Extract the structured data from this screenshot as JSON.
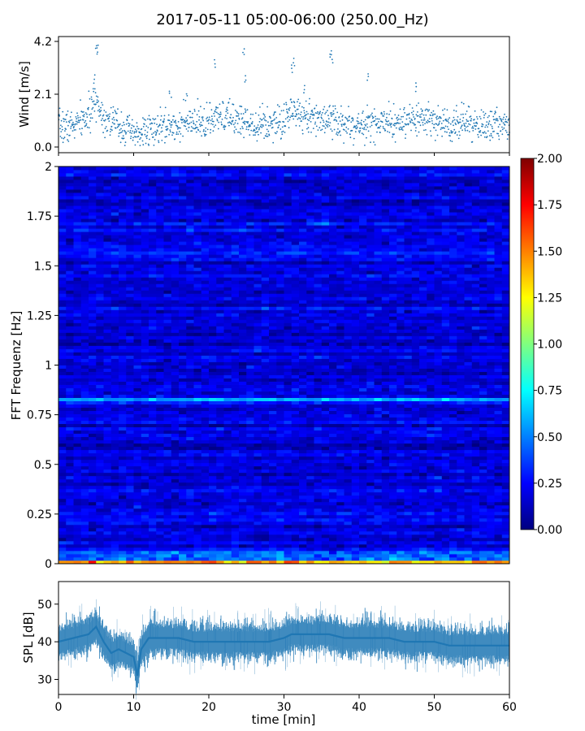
{
  "title": "2017-05-11 05:00-06:00 (250.00_Hz)",
  "chart_data": [
    {
      "type": "scatter",
      "id": "wind",
      "ylabel": "Wind [m/s]",
      "xlim": [
        0,
        60
      ],
      "ylim": [
        0,
        4.2
      ],
      "yticks": [
        0.0,
        2.1,
        4.2
      ],
      "yticklabels": [
        "0.0",
        "2.1",
        "4.2"
      ],
      "color": "#1f77b4",
      "trend": [
        [
          0,
          0.8
        ],
        [
          2,
          0.85
        ],
        [
          4,
          1.2
        ],
        [
          5,
          1.9
        ],
        [
          6,
          1.2
        ],
        [
          8,
          0.9
        ],
        [
          10,
          0.5
        ],
        [
          12,
          0.6
        ],
        [
          14,
          0.8
        ],
        [
          16,
          0.9
        ],
        [
          18,
          0.9
        ],
        [
          20,
          1.0
        ],
        [
          22,
          1.2
        ],
        [
          24,
          1.1
        ],
        [
          26,
          0.95
        ],
        [
          28,
          0.9
        ],
        [
          30,
          1.0
        ],
        [
          31,
          1.5
        ],
        [
          32,
          1.3
        ],
        [
          34,
          1.1
        ],
        [
          36,
          1.2
        ],
        [
          38,
          0.9
        ],
        [
          40,
          0.8
        ],
        [
          42,
          0.9
        ],
        [
          44,
          1.0
        ],
        [
          46,
          0.9
        ],
        [
          48,
          1.1
        ],
        [
          50,
          1.0
        ],
        [
          52,
          0.9
        ],
        [
          54,
          1.0
        ],
        [
          56,
          0.8
        ],
        [
          58,
          0.9
        ],
        [
          60,
          0.9
        ]
      ],
      "peaks": [
        [
          5.0,
          4.1
        ],
        [
          5.2,
          4.1
        ],
        [
          20.8,
          3.5
        ],
        [
          24.6,
          4.0
        ],
        [
          24.8,
          2.9
        ],
        [
          31.0,
          3.3
        ],
        [
          31.4,
          3.6
        ],
        [
          36.2,
          3.9
        ],
        [
          36.4,
          3.7
        ],
        [
          41.2,
          3.0
        ],
        [
          47.6,
          2.6
        ],
        [
          32.8,
          2.5
        ],
        [
          4.8,
          2.9
        ],
        [
          17.0,
          2.2
        ],
        [
          14.9,
          2.3
        ]
      ]
    },
    {
      "type": "heatmap",
      "id": "spectrogram",
      "ylabel": "FFT Frequenz [Hz]",
      "xlim": [
        0,
        60
      ],
      "ylim": [
        0,
        2
      ],
      "yticks": [
        0,
        0.25,
        0.5,
        0.75,
        1,
        1.25,
        1.5,
        1.75,
        2
      ],
      "yticklabels": [
        "0",
        "0.25",
        "0.5",
        "0.75",
        "1",
        "1.25",
        "1.5",
        "1.75",
        "2"
      ],
      "colormap": "jet",
      "color_range": [
        0.0,
        2.0
      ],
      "background_level": 0.18,
      "features": [
        {
          "freq": 0.83,
          "from": 0,
          "to": 60,
          "level": 0.6
        },
        {
          "freq": 0.01,
          "from": 0,
          "to": 60,
          "level": 1.2
        },
        {
          "freq": 1.72,
          "from": 33,
          "to": 36,
          "level": 0.7
        }
      ]
    },
    {
      "type": "line",
      "id": "spl",
      "xlabel": "time [min]",
      "ylabel": "SPL [dB]",
      "xlim": [
        0,
        60
      ],
      "ylim": [
        26,
        56
      ],
      "xticks": [
        0,
        10,
        20,
        30,
        40,
        50,
        60
      ],
      "xticklabels": [
        "0",
        "10",
        "20",
        "30",
        "40",
        "50",
        "60"
      ],
      "yticks": [
        30,
        40,
        50
      ],
      "yticklabels": [
        "30",
        "40",
        "50"
      ],
      "color": "#1f77b4",
      "x": [
        0,
        2,
        4,
        5,
        6,
        7,
        8,
        9,
        10,
        10.5,
        11,
        12,
        14,
        16,
        18,
        20,
        22,
        24,
        26,
        28,
        30,
        31,
        32,
        34,
        36,
        38,
        40,
        42,
        44,
        46,
        48,
        50,
        52,
        54,
        56,
        58,
        60
      ],
      "y": [
        40,
        41,
        42,
        44,
        40,
        37,
        38,
        37,
        36,
        31,
        38,
        41,
        41,
        41,
        40,
        40,
        40,
        40,
        40,
        40,
        41,
        42,
        42,
        42,
        42,
        41,
        41,
        41,
        41,
        40,
        40,
        40,
        39,
        39,
        39,
        39,
        39
      ]
    },
    {
      "type": "colorbar",
      "id": "colorbar",
      "range": [
        0.0,
        2.0
      ],
      "ticks": [
        0.0,
        0.25,
        0.5,
        0.75,
        1.0,
        1.25,
        1.5,
        1.75,
        2.0
      ],
      "ticklabels": [
        "0.00",
        "0.25",
        "0.50",
        "0.75",
        "1.00",
        "1.25",
        "1.50",
        "1.75",
        "2.00"
      ]
    }
  ]
}
